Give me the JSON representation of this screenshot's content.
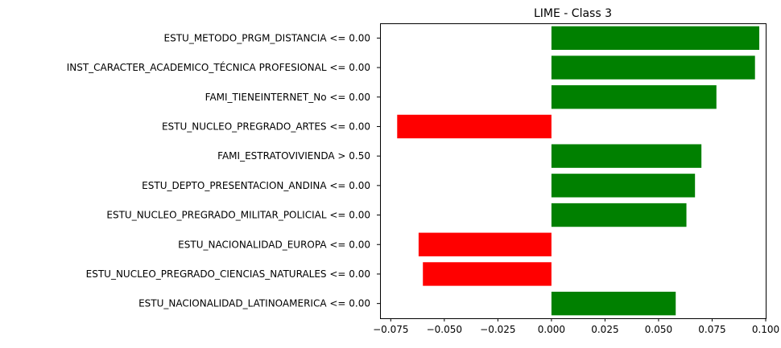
{
  "chart_data": {
    "type": "bar",
    "orientation": "horizontal",
    "title": "LIME - Class 3",
    "xlabel": "",
    "ylabel": "",
    "xlim": [
      -0.08,
      0.1
    ],
    "xticks": [
      "−0.075",
      "−0.050",
      "−0.025",
      "0.000",
      "0.025",
      "0.050",
      "0.075",
      "0.100"
    ],
    "xtick_values": [
      -0.075,
      -0.05,
      -0.025,
      0,
      0.025,
      0.05,
      0.075,
      0.1
    ],
    "grid": false,
    "positive_color": "#008000",
    "negative_color": "#ff0000",
    "categories": [
      "ESTU_METODO_PRGM_DISTANCIA <= 0.00",
      "INST_CARACTER_ACADEMICO_TÉCNICA PROFESIONAL <= 0.00",
      "FAMI_TIENEINTERNET_No <= 0.00",
      "ESTU_NUCLEO_PREGRADO_ARTES <= 0.00",
      "FAMI_ESTRATOVIVIENDA > 0.50",
      "ESTU_DEPTO_PRESENTACION_ANDINA <= 0.00",
      "ESTU_NUCLEO_PREGRADO_MILITAR_POLICIAL <= 0.00",
      "ESTU_NACIONALIDAD_EUROPA <= 0.00",
      "ESTU_NUCLEO_PREGRADO_CIENCIAS_NATURALES <= 0.00",
      "ESTU_NACIONALIDAD_LATINOAMERICA <= 0.00"
    ],
    "values": [
      0.097,
      0.095,
      0.077,
      -0.072,
      0.07,
      0.067,
      0.063,
      -0.062,
      -0.06,
      0.058
    ]
  }
}
